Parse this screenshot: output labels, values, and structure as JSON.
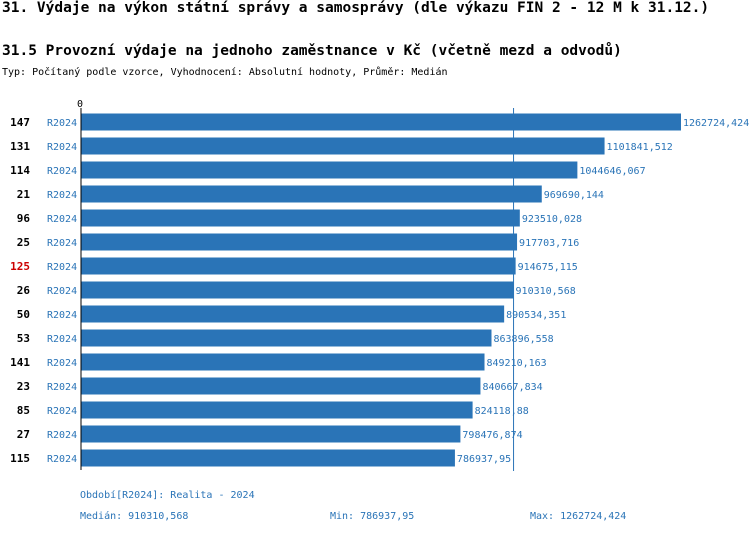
{
  "header": {
    "title": "31. Výdaje na výkon státní správy a samosprávy (dle výkazu FIN 2 - 12 M k 31.12.)",
    "subtitle": "31.5 Provozní výdaje na jednoho zaměstnance v Kč (včetně mezd a odvodů)",
    "type_line": "Typ: Počítaný podle vzorce, Vyhodnocení: Absolutní hodnoty, Průměr: Medián"
  },
  "chart_data": {
    "type": "bar",
    "orientation": "horizontal",
    "axis_zero_label": "0",
    "median_value": 910310.568,
    "highlight_color": "#cc0000",
    "bar_color": "#2a74b7",
    "label_color": "#2a74b7",
    "rows": [
      {
        "id": "147",
        "period": "R2024",
        "value": 1262724.424,
        "label": "1262724,424",
        "highlight": false
      },
      {
        "id": "131",
        "period": "R2024",
        "value": 1101841.512,
        "label": "1101841,512",
        "highlight": false
      },
      {
        "id": "114",
        "period": "R2024",
        "value": 1044646.067,
        "label": "1044646,067",
        "highlight": false
      },
      {
        "id": "21",
        "period": "R2024",
        "value": 969690.144,
        "label": "969690,144",
        "highlight": false
      },
      {
        "id": "96",
        "period": "R2024",
        "value": 923510.028,
        "label": "923510,028",
        "highlight": false
      },
      {
        "id": "25",
        "period": "R2024",
        "value": 917703.716,
        "label": "917703,716",
        "highlight": false
      },
      {
        "id": "125",
        "period": "R2024",
        "value": 914675.115,
        "label": "914675,115",
        "highlight": true
      },
      {
        "id": "26",
        "period": "R2024",
        "value": 910310.568,
        "label": "910310,568",
        "highlight": false
      },
      {
        "id": "50",
        "period": "R2024",
        "value": 890534.351,
        "label": "890534,351",
        "highlight": false
      },
      {
        "id": "53",
        "period": "R2024",
        "value": 863896.558,
        "label": "863896,558",
        "highlight": false
      },
      {
        "id": "141",
        "period": "R2024",
        "value": 849210.163,
        "label": "849210,163",
        "highlight": false
      },
      {
        "id": "23",
        "period": "R2024",
        "value": 840667.834,
        "label": "840667,834",
        "highlight": false
      },
      {
        "id": "85",
        "period": "R2024",
        "value": 824118.88,
        "label": "824118,88",
        "highlight": false
      },
      {
        "id": "27",
        "period": "R2024",
        "value": 798476.874,
        "label": "798476,874",
        "highlight": false
      },
      {
        "id": "115",
        "period": "R2024",
        "value": 786937.95,
        "label": "786937,95",
        "highlight": false
      }
    ]
  },
  "footer": {
    "period_line": "Období[R2024]: Realita - 2024",
    "median_text": "Medián: 910310,568",
    "min_text": "Min: 786937,95",
    "max_text": "Max: 1262724,424"
  }
}
